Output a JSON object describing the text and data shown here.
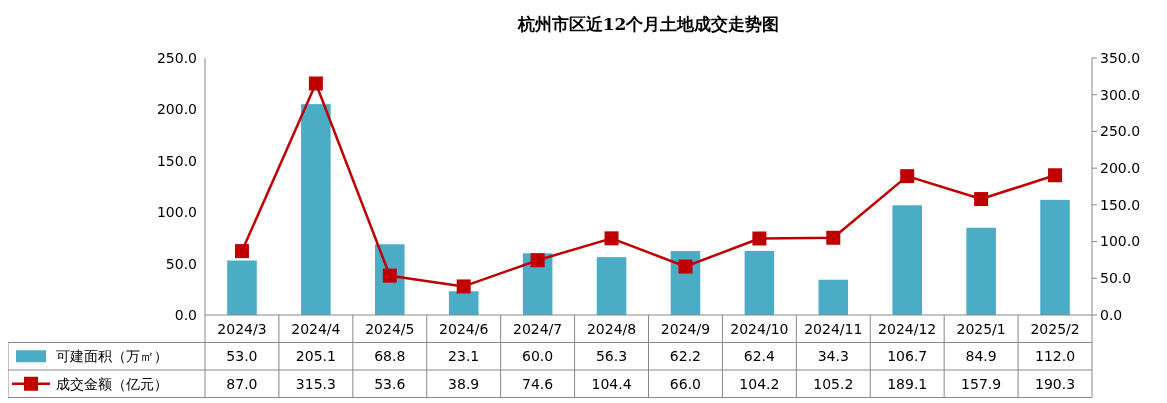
{
  "chart_data": {
    "type": "bar",
    "title": "杭州市区近12个月土地成交走势图",
    "categories": [
      "2024/3",
      "2024/4",
      "2024/5",
      "2024/6",
      "2024/7",
      "2024/8",
      "2024/9",
      "2024/10",
      "2024/11",
      "2024/12",
      "2025/1",
      "2025/2"
    ],
    "series": [
      {
        "name": "可建面积（万㎡）",
        "color": "#4bacc6",
        "values": [
          53.0,
          205.1,
          68.8,
          23.1,
          60.0,
          56.3,
          62.2,
          62.4,
          34.3,
          106.7,
          84.9,
          112.0
        ],
        "value_labels": [
          "53.0",
          "205.1",
          "68.8",
          "23.1",
          "60.0",
          "56.3",
          "62.2",
          "62.4",
          "34.3",
          "106.7",
          "84.9",
          "112.0"
        ]
      },
      {
        "name": "成交金额（亿元）",
        "type": "line",
        "axis": "y2",
        "color": "#c00000",
        "marker": "square",
        "line_style": "solid",
        "values": [
          87.0,
          315.3,
          53.6,
          38.9,
          74.6,
          104.4,
          66.0,
          104.2,
          105.2,
          189.1,
          157.9,
          190.3
        ],
        "value_labels": [
          "87.0",
          "315.3",
          "53.6",
          "38.9",
          "74.6",
          "104.4",
          "66.0",
          "104.2",
          "105.2",
          "189.1",
          "157.9",
          "190.3"
        ]
      }
    ],
    "ylim": [
      0,
      250
    ],
    "yticks": [
      {
        "value": 0,
        "label": "0.0"
      },
      {
        "value": 50,
        "label": "50.0"
      },
      {
        "value": 100,
        "label": "100.0"
      },
      {
        "value": 150,
        "label": "150.0"
      },
      {
        "value": 200,
        "label": "200.0"
      },
      {
        "value": 250,
        "label": "250.0"
      }
    ],
    "y2lim": [
      0,
      350
    ],
    "y2ticks": [
      {
        "value": 0,
        "label": "0.0"
      },
      {
        "value": 50,
        "label": "50.0"
      },
      {
        "value": 100,
        "label": "100.0"
      },
      {
        "value": 150,
        "label": "150.0"
      },
      {
        "value": 200,
        "label": "200.0"
      },
      {
        "value": 250,
        "label": "250.0"
      },
      {
        "value": 300,
        "label": "300.0"
      },
      {
        "value": 350,
        "label": "350.0"
      }
    ],
    "legend": "bottom"
  }
}
